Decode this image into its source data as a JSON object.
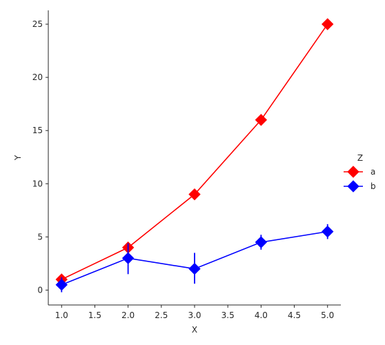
{
  "chart_data": {
    "type": "line",
    "title": "",
    "xlabel": "X",
    "ylabel": "Y",
    "xlim": [
      0.8,
      5.2
    ],
    "ylim": [
      -1.4,
      26.3
    ],
    "xticks": [
      "1.0",
      "1.5",
      "2.0",
      "2.5",
      "3.0",
      "3.5",
      "4.0",
      "4.5",
      "5.0"
    ],
    "yticks": [
      "0",
      "5",
      "10",
      "15",
      "20",
      "25"
    ],
    "grid": false,
    "legend": {
      "title": "Z",
      "placement": "right"
    },
    "x": [
      1,
      2,
      3,
      4,
      5
    ],
    "series": [
      {
        "name": "a",
        "color": "#ff0000",
        "marker": "diamond",
        "values": [
          1,
          4,
          9,
          16,
          25
        ],
        "err_low": [
          1,
          4,
          9,
          16,
          25
        ],
        "err_high": [
          1,
          4,
          9,
          16,
          25
        ]
      },
      {
        "name": "b",
        "color": "#0000ff",
        "marker": "diamond",
        "values": [
          0.5,
          3,
          2,
          4.5,
          5.5
        ],
        "err_low": [
          -0.2,
          1.5,
          0.6,
          3.8,
          4.8
        ],
        "err_high": [
          1.2,
          4.4,
          3.5,
          5.2,
          6.2
        ]
      }
    ]
  }
}
